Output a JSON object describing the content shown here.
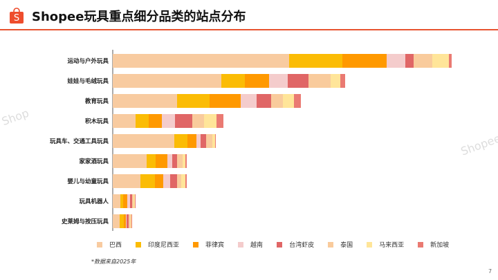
{
  "header": {
    "title": "Shopee玩具重点细分品类的站点分布",
    "logo_text": "S"
  },
  "watermarks": [
    "Shop",
    "Shopee"
  ],
  "footnote": "*数据来自2025年",
  "page_number": "7",
  "chart_data": {
    "type": "bar",
    "orientation": "horizontal",
    "stacked": true,
    "title": "",
    "xlabel": "",
    "ylabel": "",
    "grid": false,
    "legend_position": "bottom",
    "categories": [
      "运动与户外玩具",
      "娃娃与毛绒玩具",
      "教育玩具",
      "积木玩具",
      "玩具车、交通工具玩具",
      "家家酒玩具",
      "婴儿与幼童玩具",
      "玩具机器人",
      "史莱姆与按压玩具"
    ],
    "series": [
      {
        "name": "巴西",
        "color": "#F8CBA0",
        "values": [
          255,
          157,
          93,
          33,
          89,
          49,
          40,
          11,
          10
        ]
      },
      {
        "name": "印度尼西亚",
        "color": "#FBBC05",
        "values": [
          77,
          34,
          47,
          19,
          19,
          13,
          21,
          4,
          6
        ]
      },
      {
        "name": "菲律宾",
        "color": "#FF9900",
        "values": [
          64,
          35,
          45,
          19,
          13,
          17,
          12,
          6,
          3
        ]
      },
      {
        "name": "越南",
        "color": "#F4CCCC",
        "values": [
          27,
          27,
          23,
          19,
          6,
          7,
          10,
          4,
          1
        ]
      },
      {
        "name": "台湾虾皮",
        "color": "#E06666",
        "values": [
          12,
          30,
          21,
          25,
          8,
          7,
          10,
          3,
          3
        ]
      },
      {
        "name": "泰国",
        "color": "#F9CB9C",
        "values": [
          27,
          32,
          17,
          17,
          9,
          8,
          6,
          2,
          3
        ]
      },
      {
        "name": "马来西亚",
        "color": "#FFE599",
        "values": [
          24,
          14,
          16,
          18,
          4,
          4,
          6,
          2,
          1
        ]
      },
      {
        "name": "新加坡",
        "color": "#EA7A72",
        "values": [
          4,
          7,
          10,
          10,
          1,
          2,
          2,
          1,
          1
        ]
      }
    ]
  }
}
